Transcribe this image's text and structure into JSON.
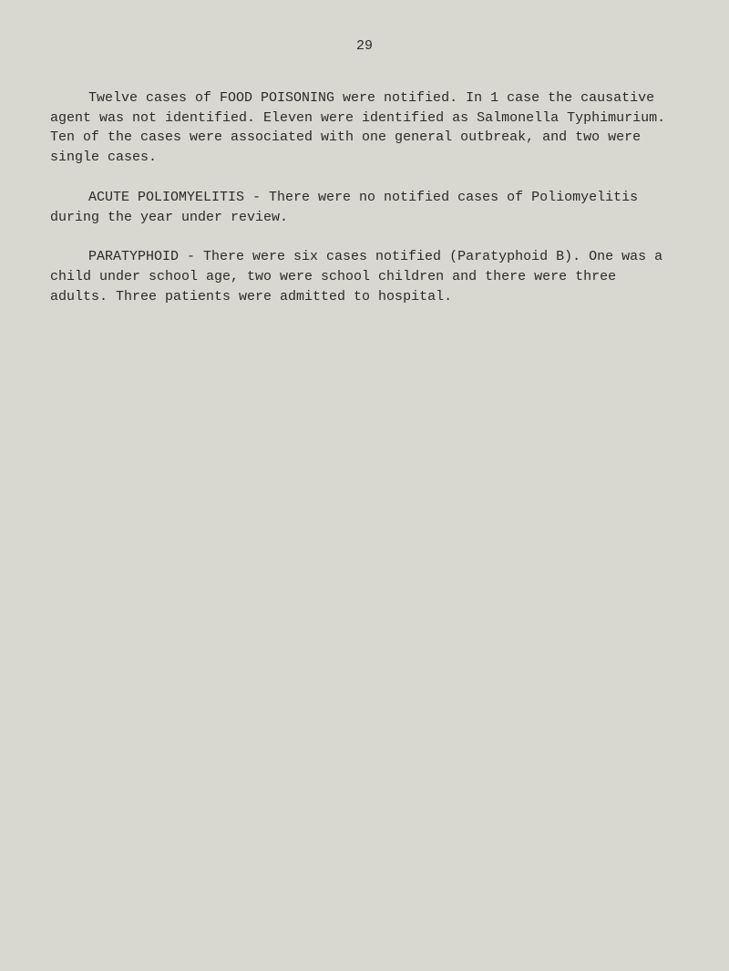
{
  "page_number": "29",
  "paragraphs": [
    {
      "text": "Twelve cases of FOOD POISONING were notified.  In 1 case the causative agent was not identified. Eleven were identified as Salmonella Typhimurium.   Ten of the cases were associated with one general outbreak, and two were single cases."
    },
    {
      "text": "ACUTE POLIOMYELITIS - There were no notified cases of Poliomyelitis during the year under review."
    },
    {
      "text": "PARATYPHOID - There were six cases notified (Paratyphoid B). One was a child under school age, two were school children and there were three adults. Three patients were admitted to hospital."
    }
  ],
  "colors": {
    "background": "#d8d8d0",
    "text": "#2a2a2a"
  },
  "typography": {
    "font_family": "Courier New",
    "font_size_pt": 11,
    "line_height": 1.45
  }
}
